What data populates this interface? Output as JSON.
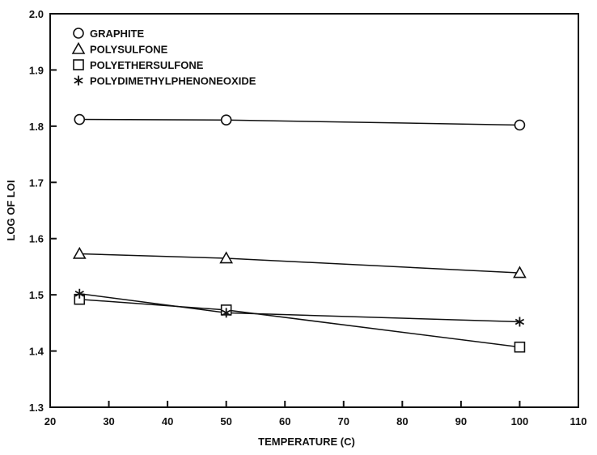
{
  "chart_data": {
    "type": "line",
    "title": "",
    "xlabel": "TEMPERATURE (C)",
    "ylabel": "LOG OF LOI",
    "xlim": [
      20,
      110
    ],
    "ylim": [
      1.3,
      2.0
    ],
    "x_ticks": [
      20,
      30,
      40,
      50,
      60,
      70,
      80,
      90,
      100,
      110
    ],
    "y_ticks": [
      1.3,
      1.4,
      1.5,
      1.6,
      1.7,
      1.8,
      1.9,
      2.0
    ],
    "grid": false,
    "legend_position": "top-left",
    "series": [
      {
        "name": "GRAPHITE",
        "marker": "circle",
        "x": [
          25,
          50,
          100
        ],
        "y": [
          1.812,
          1.811,
          1.802
        ]
      },
      {
        "name": "POLYSULFONE",
        "marker": "triangle",
        "x": [
          25,
          50,
          100
        ],
        "y": [
          1.573,
          1.565,
          1.539
        ]
      },
      {
        "name": "POLYETHERSULFONE",
        "marker": "square",
        "x": [
          25,
          50,
          100
        ],
        "y": [
          1.492,
          1.473,
          1.407
        ]
      },
      {
        "name": "POLYDIMETHYLPHENONEOXIDE",
        "marker": "asterisk",
        "x": [
          25,
          50,
          100
        ],
        "y": [
          1.502,
          1.468,
          1.452
        ]
      }
    ],
    "colors": {
      "ink": "#111111",
      "background": "#ffffff"
    }
  }
}
